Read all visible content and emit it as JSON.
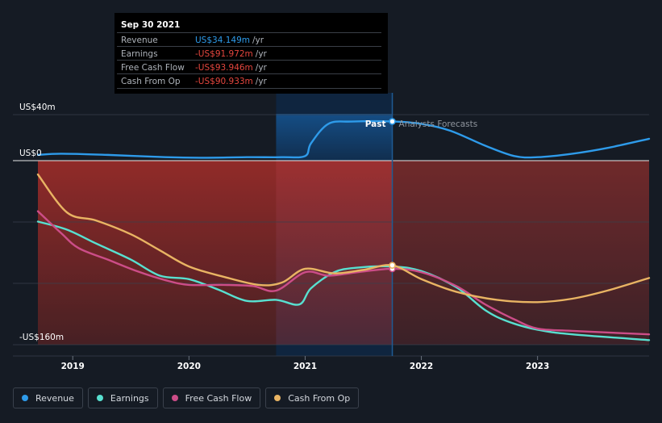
{
  "tooltip": {
    "date": "Sep 30 2021",
    "rows": [
      {
        "label": "Revenue",
        "value": "US$34.149m",
        "unit": "/yr",
        "color": "#2e9bea"
      },
      {
        "label": "Earnings",
        "value": "-US$91.972m",
        "unit": "/yr",
        "color": "#e5463e"
      },
      {
        "label": "Free Cash Flow",
        "value": "-US$93.946m",
        "unit": "/yr",
        "color": "#e5463e"
      },
      {
        "label": "Cash From Op",
        "value": "-US$90.933m",
        "unit": "/yr",
        "color": "#e5463e"
      }
    ]
  },
  "labels": {
    "past": "Past",
    "forecast": "Analysts Forecasts"
  },
  "chart_data": {
    "type": "line",
    "ylim": [
      -160,
      40
    ],
    "y_ticks": [
      {
        "value": 40,
        "label": "US$40m"
      },
      {
        "value": 0,
        "label": "US$0"
      },
      {
        "value": -160,
        "label": "-US$160m"
      }
    ],
    "x_ticks": [
      "2019",
      "2020",
      "2021",
      "2022",
      "2023"
    ],
    "xlim": [
      2018.7,
      2023.96
    ],
    "divider_x": 2021.75,
    "highlight_start": 2020.75,
    "series": [
      {
        "name": "Revenue",
        "color": "#2e9bea",
        "points": [
          [
            2018.7,
            5
          ],
          [
            2018.9,
            6
          ],
          [
            2019.3,
            5
          ],
          [
            2019.8,
            3
          ],
          [
            2020.1,
            2.5
          ],
          [
            2020.5,
            3
          ],
          [
            2020.8,
            3
          ],
          [
            2021.0,
            4
          ],
          [
            2021.05,
            15
          ],
          [
            2021.2,
            32
          ],
          [
            2021.4,
            34
          ],
          [
            2021.75,
            34.1
          ],
          [
            2022.0,
            32
          ],
          [
            2022.25,
            26
          ],
          [
            2022.55,
            13
          ],
          [
            2022.8,
            4
          ],
          [
            2023.0,
            3
          ],
          [
            2023.3,
            6
          ],
          [
            2023.6,
            11
          ],
          [
            2023.96,
            19
          ]
        ]
      },
      {
        "name": "Earnings",
        "color": "#58e0d0",
        "points": [
          [
            2018.7,
            -53
          ],
          [
            2018.95,
            -60
          ],
          [
            2019.2,
            -72
          ],
          [
            2019.5,
            -86
          ],
          [
            2019.75,
            -100
          ],
          [
            2020.0,
            -103
          ],
          [
            2020.25,
            -112
          ],
          [
            2020.5,
            -122
          ],
          [
            2020.75,
            -121
          ],
          [
            2020.95,
            -125
          ],
          [
            2021.05,
            -111
          ],
          [
            2021.25,
            -97
          ],
          [
            2021.45,
            -93
          ],
          [
            2021.75,
            -92
          ],
          [
            2022.0,
            -96
          ],
          [
            2022.3,
            -110
          ],
          [
            2022.55,
            -130
          ],
          [
            2022.75,
            -140
          ],
          [
            2023.0,
            -147
          ],
          [
            2023.3,
            -151
          ],
          [
            2023.96,
            -156
          ]
        ]
      },
      {
        "name": "Free Cash Flow",
        "color": "#cc4d88",
        "points": [
          [
            2018.7,
            -44
          ],
          [
            2018.9,
            -63
          ],
          [
            2019.05,
            -76
          ],
          [
            2019.3,
            -86
          ],
          [
            2019.55,
            -96
          ],
          [
            2019.8,
            -104
          ],
          [
            2020.0,
            -108
          ],
          [
            2020.3,
            -108
          ],
          [
            2020.55,
            -109
          ],
          [
            2020.75,
            -113
          ],
          [
            2021.0,
            -97
          ],
          [
            2021.2,
            -100
          ],
          [
            2021.45,
            -97
          ],
          [
            2021.75,
            -94
          ],
          [
            2022.0,
            -97
          ],
          [
            2022.3,
            -109
          ],
          [
            2022.55,
            -125
          ],
          [
            2022.8,
            -138
          ],
          [
            2023.0,
            -146
          ],
          [
            2023.3,
            -148
          ],
          [
            2023.96,
            -151
          ]
        ]
      },
      {
        "name": "Cash From Op",
        "color": "#e9b463",
        "points": [
          [
            2018.7,
            -12
          ],
          [
            2018.95,
            -45
          ],
          [
            2019.2,
            -52
          ],
          [
            2019.5,
            -64
          ],
          [
            2019.75,
            -78
          ],
          [
            2020.0,
            -92
          ],
          [
            2020.3,
            -101
          ],
          [
            2020.6,
            -108
          ],
          [
            2020.8,
            -106
          ],
          [
            2021.0,
            -94
          ],
          [
            2021.25,
            -98
          ],
          [
            2021.5,
            -95
          ],
          [
            2021.75,
            -91
          ],
          [
            2022.0,
            -103
          ],
          [
            2022.3,
            -114
          ],
          [
            2022.65,
            -121
          ],
          [
            2023.0,
            -123
          ],
          [
            2023.3,
            -120
          ],
          [
            2023.6,
            -113
          ],
          [
            2023.96,
            -102
          ]
        ]
      }
    ]
  }
}
